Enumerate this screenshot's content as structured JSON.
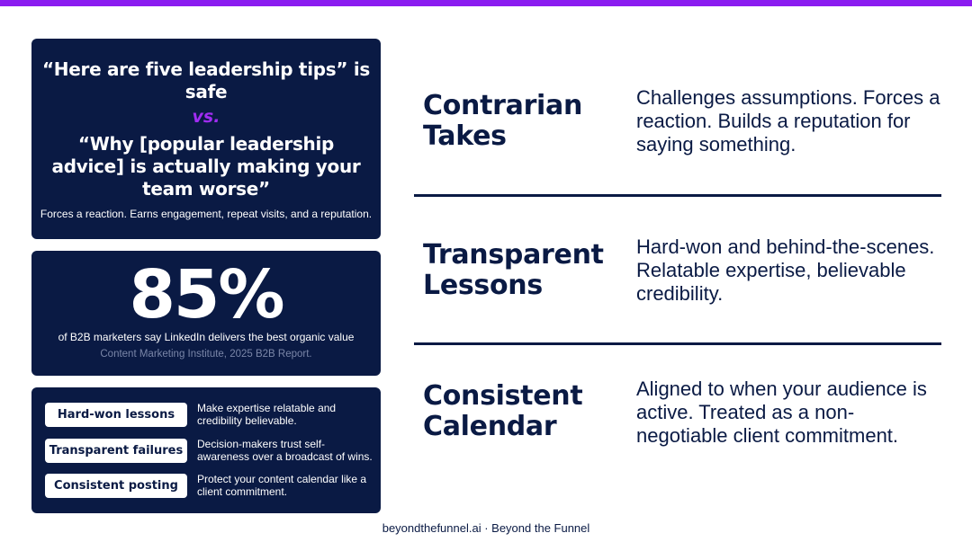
{
  "quote_card": {
    "quote_safe": "“Here are five leadership tips” is safe",
    "vs": "vs.",
    "quote_contrarian": "“Why [popular leadership advice] is actually making your team worse”",
    "caption": "Forces a reaction. Earns engagement, repeat visits, and a reputation."
  },
  "stat_card": {
    "value": "85%",
    "description": "of B2B marketers say LinkedIn delivers the best organic value",
    "source": "Content Marketing Institute, 2025 B2B Report."
  },
  "tips": [
    {
      "label": "Hard-won lessons",
      "description": "Make expertise relatable and credibility believable."
    },
    {
      "label": "Transparent failures",
      "description": "Decision-makers trust self-awareness over a broadcast of wins."
    },
    {
      "label": "Consistent posting",
      "description": "Protect your content calendar like a client commitment."
    }
  ],
  "rows": [
    {
      "title": "Contrarian Takes",
      "description": "Challenges assumptions. Forces a reaction. Builds a reputation for saying something."
    },
    {
      "title": "Transparent Lessons",
      "description": "Hard-won and behind-the-scenes. Relatable expertise, believable credibility."
    },
    {
      "title": "Consistent Calendar",
      "description": "Aligned to when your audience is active. Treated as a non-negotiable client commitment."
    }
  ],
  "footer": "beyondthefunnel.ai · Beyond the Funnel",
  "colors": {
    "accent": "#8b1cf0",
    "navy": "#0a1a44",
    "vs": "#a02cf2"
  }
}
